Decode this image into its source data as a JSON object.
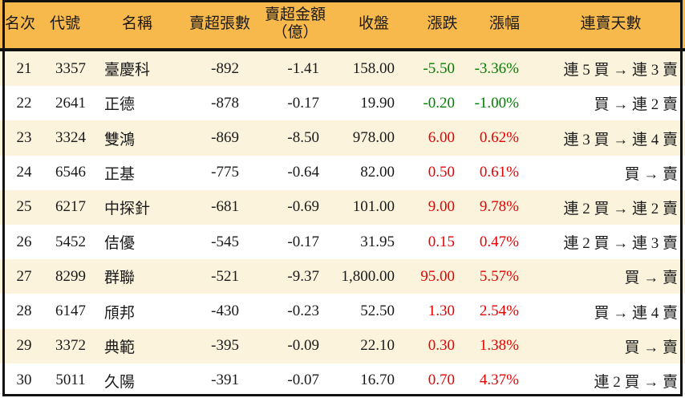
{
  "colors": {
    "header_bg": "#F7B84C",
    "row_alt_bg": "#FBF3DC",
    "row_bg": "#FFFFFF",
    "border": "#111111",
    "text": "#1A1A1A",
    "up": "#E60000",
    "down": "#008000"
  },
  "table": {
    "columns": [
      {
        "key": "rank",
        "label_lines": [
          "名次"
        ]
      },
      {
        "key": "code",
        "label_lines": [
          "代號"
        ]
      },
      {
        "key": "name",
        "label_lines": [
          "名稱"
        ]
      },
      {
        "key": "volume",
        "label_lines": [
          "賣超張數"
        ]
      },
      {
        "key": "amount",
        "label_lines": [
          "賣超金額",
          "（億）"
        ]
      },
      {
        "key": "close",
        "label_lines": [
          "收盤"
        ]
      },
      {
        "key": "change",
        "label_lines": [
          "漲跌"
        ]
      },
      {
        "key": "pct",
        "label_lines": [
          "漲幅"
        ]
      },
      {
        "key": "streak",
        "label_lines": [
          "連賣天數"
        ]
      }
    ]
  },
  "chart_data": {
    "type": "table",
    "columns": [
      "名次",
      "代號",
      "名稱",
      "賣超張數",
      "賣超金額（億）",
      "收盤",
      "漲跌",
      "漲幅",
      "連賣天數"
    ],
    "rows": [
      {
        "rank": "21",
        "code": "3357",
        "name": "臺慶科",
        "volume": "-892",
        "amount": "-1.41",
        "close": "158.00",
        "change": "-5.50",
        "pct": "-3.36%",
        "streak": "連 5 買 → 連 3 賣",
        "trend": "down"
      },
      {
        "rank": "22",
        "code": "2641",
        "name": "正德",
        "volume": "-878",
        "amount": "-0.17",
        "close": "19.90",
        "change": "-0.20",
        "pct": "-1.00%",
        "streak": "買 → 連 2 賣",
        "trend": "down"
      },
      {
        "rank": "23",
        "code": "3324",
        "name": "雙鴻",
        "volume": "-869",
        "amount": "-8.50",
        "close": "978.00",
        "change": "6.00",
        "pct": "0.62%",
        "streak": "連 3 買 → 連 4 賣",
        "trend": "up"
      },
      {
        "rank": "24",
        "code": "6546",
        "name": "正基",
        "volume": "-775",
        "amount": "-0.64",
        "close": "82.00",
        "change": "0.50",
        "pct": "0.61%",
        "streak": "買 → 賣",
        "trend": "up"
      },
      {
        "rank": "25",
        "code": "6217",
        "name": "中探針",
        "volume": "-681",
        "amount": "-0.69",
        "close": "101.00",
        "change": "9.00",
        "pct": "9.78%",
        "streak": "連 2 買 → 連 2 賣",
        "trend": "up"
      },
      {
        "rank": "26",
        "code": "5452",
        "name": "佶優",
        "volume": "-545",
        "amount": "-0.17",
        "close": "31.95",
        "change": "0.15",
        "pct": "0.47%",
        "streak": "連 2 買 → 連 3 賣",
        "trend": "up"
      },
      {
        "rank": "27",
        "code": "8299",
        "name": "群聯",
        "volume": "-521",
        "amount": "-9.37",
        "close": "1,800.00",
        "change": "95.00",
        "pct": "5.57%",
        "streak": "買 → 賣",
        "trend": "up"
      },
      {
        "rank": "28",
        "code": "6147",
        "name": "頎邦",
        "volume": "-430",
        "amount": "-0.23",
        "close": "52.50",
        "change": "1.30",
        "pct": "2.54%",
        "streak": "買 → 連 4 賣",
        "trend": "up"
      },
      {
        "rank": "29",
        "code": "3372",
        "name": "典範",
        "volume": "-395",
        "amount": "-0.09",
        "close": "22.10",
        "change": "0.30",
        "pct": "1.38%",
        "streak": "買 → 賣",
        "trend": "up"
      },
      {
        "rank": "30",
        "code": "5011",
        "name": "久陽",
        "volume": "-391",
        "amount": "-0.07",
        "close": "16.70",
        "change": "0.70",
        "pct": "4.37%",
        "streak": "連 2 買 → 賣",
        "trend": "up"
      }
    ]
  }
}
